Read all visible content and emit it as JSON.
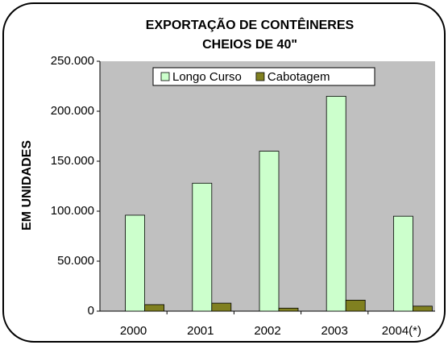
{
  "chart_data": {
    "type": "bar",
    "title": [
      "EXPORTAÇÃO DE CONTÊINERES",
      "CHEIOS DE 40\""
    ],
    "y_label": "EM UNIDADES",
    "categories": [
      "2000",
      "2001",
      "2002",
      "2003",
      "2004(*)"
    ],
    "series": [
      {
        "name": "Longo Curso",
        "color": "#ccffcc",
        "values": [
          96000,
          128000,
          160000,
          215000,
          95000
        ]
      },
      {
        "name": "Cabotagem",
        "color": "#808020",
        "values": [
          6500,
          8000,
          3000,
          11000,
          5000
        ]
      }
    ],
    "ylim": [
      0,
      250000
    ],
    "yticks": [
      0,
      {
        "value": 50000,
        "label": "50.000"
      },
      {
        "value": 100000,
        "label": "100.000"
      },
      {
        "value": 150000,
        "label": "150.000"
      },
      {
        "value": 200000,
        "label": "200.000"
      },
      {
        "value": 250000,
        "label": "250.000"
      }
    ],
    "legend": "top"
  }
}
